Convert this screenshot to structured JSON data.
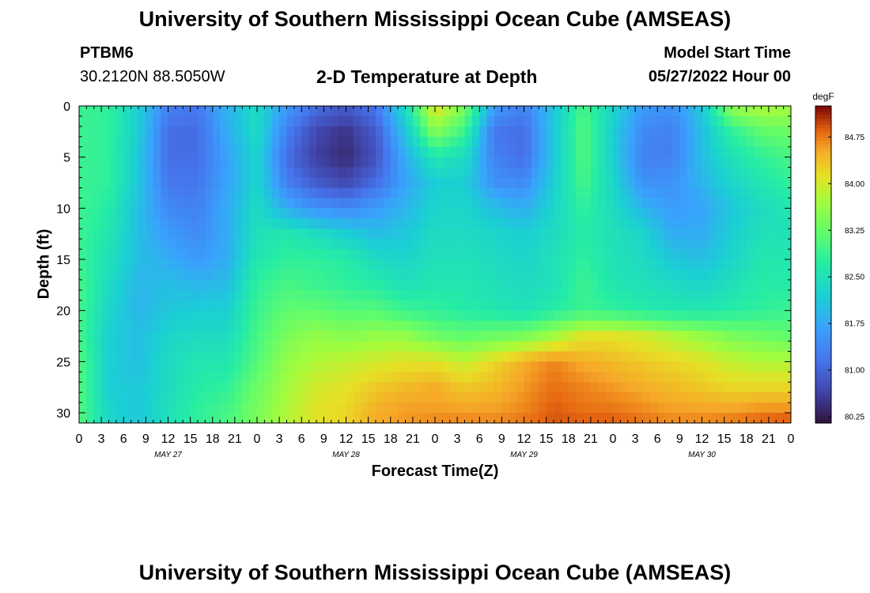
{
  "header": {
    "title": "University of Southern Mississippi Ocean Cube (AMSEAS)",
    "station_id": "PTBM6",
    "station_coords": "30.2120N  88.5050W",
    "chart_name": "2-D Temperature at Depth",
    "model_start_label": "Model Start Time",
    "model_start_value": "05/27/2022 Hour 00"
  },
  "footer": {
    "title": "University of Southern Mississippi Ocean Cube (AMSEAS)"
  },
  "chart_data": {
    "type": "heatmap",
    "title": "2-D Temperature at Depth",
    "xlabel": "Forecast Time(Z)",
    "ylabel": "Depth (ft)",
    "x_tick_labels": [
      "0",
      "3",
      "6",
      "9",
      "12",
      "15",
      "18",
      "21",
      "0",
      "3",
      "6",
      "9",
      "12",
      "15",
      "18",
      "21",
      "0",
      "3",
      "6",
      "9",
      "12",
      "15",
      "18",
      "21",
      "0",
      "3",
      "6",
      "9",
      "12",
      "15",
      "18",
      "21",
      "0"
    ],
    "x_day_labels": [
      "MAY 27",
      "MAY 28",
      "MAY 29",
      "MAY 30"
    ],
    "x_range_hours": [
      0,
      96
    ],
    "y_ticks": [
      0,
      5,
      10,
      15,
      20,
      25,
      30
    ],
    "y_range": [
      0,
      31
    ],
    "y_inverted": true,
    "colorbar": {
      "unit": "degF",
      "ticks": [
        80.25,
        81.0,
        81.75,
        82.5,
        83.25,
        84.0,
        84.75
      ],
      "tick_labels": [
        "80.25",
        "81.00",
        "81.75",
        "82.50",
        "83.25",
        "84.00",
        "84.75"
      ],
      "range": [
        80.15,
        85.25
      ],
      "colormap": "turbo"
    },
    "grid_x_hours": [
      0,
      4,
      8,
      12,
      16,
      20,
      24,
      28,
      32,
      36,
      40,
      44,
      48,
      52,
      56,
      60,
      64,
      68,
      72,
      76,
      80,
      84,
      88,
      92,
      96
    ],
    "grid_depth_ft": [
      0,
      2.5,
      5,
      7.5,
      10,
      12.5,
      15,
      17.5,
      20,
      22.5,
      25,
      27.5,
      30,
      31
    ],
    "values": [
      [
        82.9,
        82.8,
        82.2,
        81.3,
        81.2,
        81.9,
        82.4,
        81.6,
        81.1,
        80.9,
        81.2,
        82.4,
        84.2,
        83.4,
        81.6,
        81.3,
        82.1,
        83.0,
        82.3,
        81.6,
        81.5,
        82.1,
        83.6,
        83.8,
        83.7
      ],
      [
        82.9,
        82.8,
        82.2,
        81.1,
        81.1,
        81.8,
        82.4,
        81.3,
        80.7,
        80.5,
        80.9,
        82.1,
        83.5,
        82.9,
        81.2,
        81.1,
        82.1,
        83.1,
        82.2,
        81.4,
        81.3,
        82.0,
        82.8,
        83.2,
        83.3
      ],
      [
        82.9,
        82.8,
        82.1,
        81.1,
        81.1,
        81.7,
        82.3,
        81.1,
        80.6,
        80.4,
        80.8,
        81.8,
        82.6,
        82.4,
        81.3,
        81.1,
        82.1,
        83.1,
        82.2,
        81.3,
        81.3,
        82.0,
        82.5,
        82.8,
        83.0
      ],
      [
        82.9,
        82.8,
        82.1,
        81.2,
        81.2,
        81.7,
        82.3,
        81.3,
        80.9,
        80.7,
        81.1,
        81.7,
        82.2,
        82.2,
        81.5,
        81.4,
        82.2,
        83.0,
        82.3,
        81.5,
        81.5,
        81.9,
        82.3,
        82.6,
        82.8
      ],
      [
        82.9,
        82.7,
        82.0,
        81.4,
        81.3,
        81.8,
        82.4,
        81.8,
        81.5,
        81.4,
        81.6,
        81.9,
        82.3,
        82.3,
        82.0,
        81.8,
        82.3,
        82.8,
        82.4,
        81.9,
        81.6,
        81.7,
        82.1,
        82.4,
        82.6
      ],
      [
        82.9,
        82.6,
        82.0,
        81.6,
        81.4,
        81.8,
        82.5,
        82.6,
        82.4,
        82.2,
        82.0,
        82.1,
        82.4,
        82.4,
        82.3,
        82.2,
        82.4,
        82.7,
        82.5,
        82.3,
        81.8,
        81.8,
        82.2,
        82.5,
        82.5
      ],
      [
        82.9,
        82.5,
        82.0,
        81.8,
        81.6,
        81.8,
        82.6,
        82.8,
        82.8,
        82.7,
        82.4,
        82.3,
        82.5,
        82.5,
        82.4,
        82.3,
        82.5,
        82.8,
        82.5,
        82.4,
        82.1,
        82.0,
        82.3,
        82.6,
        82.6
      ],
      [
        83.0,
        82.4,
        81.9,
        82.0,
        81.9,
        82.0,
        82.8,
        83.0,
        82.9,
        82.8,
        82.7,
        82.5,
        82.6,
        82.6,
        82.5,
        82.4,
        82.5,
        82.9,
        82.6,
        82.5,
        82.4,
        82.3,
        82.5,
        82.7,
        82.7
      ],
      [
        83.0,
        82.3,
        81.9,
        82.1,
        82.2,
        82.2,
        82.9,
        83.2,
        83.2,
        83.1,
        83.1,
        82.9,
        82.8,
        82.7,
        82.6,
        82.5,
        82.7,
        82.9,
        82.8,
        82.7,
        82.6,
        82.6,
        82.7,
        82.8,
        82.9
      ],
      [
        83.0,
        82.2,
        82.0,
        82.3,
        82.4,
        82.4,
        83.0,
        83.4,
        83.6,
        83.5,
        83.6,
        83.6,
        83.3,
        83.2,
        83.3,
        83.4,
        83.7,
        84.1,
        84.1,
        84.0,
        83.8,
        83.6,
        83.4,
        83.3,
        83.2
      ],
      [
        83.1,
        82.2,
        82.0,
        82.4,
        82.6,
        82.6,
        83.1,
        83.6,
        83.8,
        83.9,
        84.0,
        84.1,
        84.1,
        83.9,
        84.2,
        84.5,
        84.7,
        84.5,
        84.4,
        84.3,
        84.2,
        84.1,
        83.9,
        83.8,
        83.8
      ],
      [
        83.1,
        82.2,
        82.1,
        82.4,
        82.7,
        82.8,
        83.3,
        83.7,
        84.0,
        84.1,
        84.3,
        84.4,
        84.5,
        84.3,
        84.4,
        84.6,
        84.8,
        84.7,
        84.6,
        84.5,
        84.4,
        84.3,
        84.2,
        84.2,
        84.2
      ],
      [
        83.1,
        82.3,
        82.1,
        82.5,
        82.8,
        83.0,
        83.4,
        83.8,
        84.1,
        84.2,
        84.5,
        84.6,
        84.6,
        84.6,
        84.6,
        84.7,
        84.9,
        84.8,
        84.8,
        84.7,
        84.6,
        84.6,
        84.6,
        84.7,
        84.7
      ],
      [
        83.1,
        82.3,
        82.1,
        82.5,
        82.8,
        83.0,
        83.4,
        83.8,
        84.1,
        84.2,
        84.5,
        84.6,
        84.7,
        84.7,
        84.7,
        84.8,
        84.9,
        84.9,
        84.9,
        84.8,
        84.7,
        84.7,
        84.8,
        84.9,
        85.0
      ]
    ]
  }
}
